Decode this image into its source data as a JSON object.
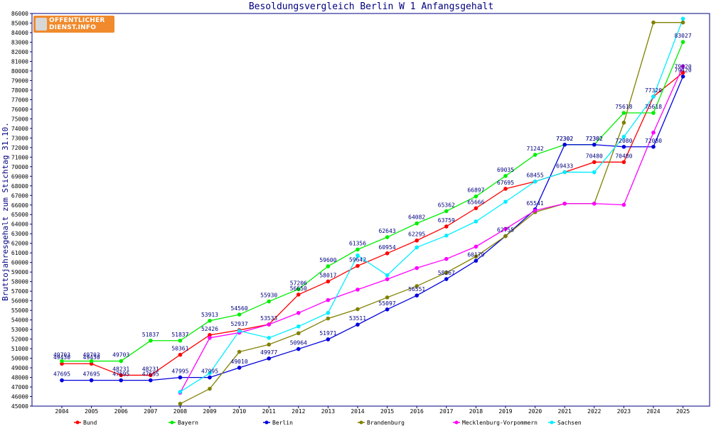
{
  "logo": {
    "text": "OFFENTLICHER\nDIENST.INFO"
  },
  "chart_data": {
    "type": "line",
    "title": "Besoldungsvergleich Berlin W 1 Anfangsgehalt",
    "xlabel": "",
    "ylabel": "Bruttojahresgehalt zum Stichtag 31.10.",
    "ylim": [
      45000,
      86000
    ],
    "ytick_step": 1000,
    "grid": false,
    "legend": "bottom",
    "categories": [
      "2004",
      "2005",
      "2006",
      "2007",
      "2008",
      "2009",
      "2010",
      "2011",
      "2012",
      "2013",
      "2014",
      "2015",
      "2016",
      "2017",
      "2018",
      "2019",
      "2020",
      "2021",
      "2022",
      "2023",
      "2024",
      "2025"
    ],
    "series": [
      {
        "name": "Bund",
        "color": "#ff0000",
        "labels": true,
        "values": [
          49430,
          49430,
          48231,
          48231,
          50361,
          52426,
          52937,
          53533,
          56650,
          58017,
          59642,
          60954,
          62295,
          63759,
          65666,
          67695,
          68455,
          69433,
          70480,
          70480,
          77320,
          79820
        ]
      },
      {
        "name": "Bayern",
        "color": "#00ee00",
        "labels": true,
        "values": [
          49703,
          49703,
          49703,
          51837,
          51837,
          53913,
          54560,
          55930,
          57206,
          59600,
          61356,
          62643,
          64082,
          65362,
          66897,
          69035,
          71242,
          72302,
          72302,
          75618,
          75618,
          83027
        ]
      },
      {
        "name": "Berlin",
        "color": "#0000dd",
        "labels": true,
        "values": [
          47695,
          47695,
          47695,
          47695,
          47995,
          47995,
          49010,
          49977,
          50964,
          51971,
          53511,
          55097,
          56551,
          58267,
          60179,
          62755,
          65541,
          72302,
          72302,
          72080,
          72080,
          79420
        ]
      },
      {
        "name": "Brandenburg",
        "color": "#808000",
        "labels": false,
        "values": [
          null,
          null,
          null,
          null,
          45242,
          46813,
          50669,
          51429,
          52610,
          54151,
          55126,
          56349,
          57533,
          58942,
          60622,
          62755,
          65261,
          66149,
          66149,
          74602,
          85060,
          85060
        ]
      },
      {
        "name": "Mecklenburg-Vorpommern",
        "color": "#ff00ff",
        "labels": false,
        "values": [
          null,
          null,
          null,
          null,
          46400,
          52128,
          52669,
          53526,
          54728,
          56074,
          57166,
          58251,
          59418,
          60370,
          61655,
          63504,
          65430,
          66149,
          66149,
          66020,
          73567,
          80483
        ]
      },
      {
        "name": "Sachsen",
        "color": "#00eeff",
        "labels": false,
        "values": [
          null,
          null,
          null,
          null,
          46489,
          48442,
          52855,
          52127,
          53320,
          54734,
          60735,
          58664,
          61577,
          62809,
          64285,
          66342,
          68455,
          69433,
          69423,
          73123,
          77320,
          85456
        ]
      }
    ]
  }
}
